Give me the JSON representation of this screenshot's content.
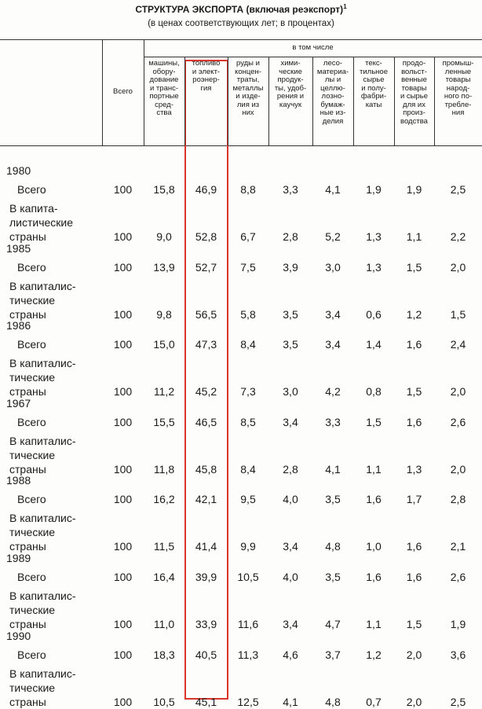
{
  "title": "СТРУКТУРА ЭКСПОРТА (включая реэкспорт)",
  "title_note": "1",
  "subtitle": "(в ценах соответствующих лет; в процентах)",
  "table": {
    "header": {
      "total": "Всего",
      "group": "в том числе",
      "columns": [
        "машины,\nобору-\nдование\nи транс-\nпортные\nсред-\nства",
        "топливо\nи элект-\nроэнер-\nгия",
        "руды и\nконцен-\nтраты,\nметаллы\nи изде-\nлия из\nних",
        "хими-\nческие\nпродук-\nты, удоб-\nрения и\nкаучук",
        "лесо-\nматериа-\nлы и\nцеллю-\nлозно-\nбумаж-\nные из-\nделия",
        "текс-\nтильное\nсырье\nи полу-\nфабри-\nкаты",
        "продо-\nвольст-\nвенные\nтовары\nи сырье\nдля их\nпроиз-\nводства",
        "промыш-\nленные\nтовары\nнарод-\nного по-\nтребле-\nния"
      ]
    },
    "groups": [
      {
        "year": "1980",
        "rows": [
          {
            "label": "Всего",
            "values": [
              "100",
              "15,8",
              "46,9",
              "8,8",
              "3,3",
              "4,1",
              "1,9",
              "1,9",
              "2,5"
            ]
          },
          {
            "label": "В капита-\nлистические\nстраны",
            "values": [
              "100",
              "9,0",
              "52,8",
              "6,7",
              "2,8",
              "5,2",
              "1,3",
              "1,1",
              "2,2"
            ]
          }
        ]
      },
      {
        "year": "1985",
        "rows": [
          {
            "label": "Всего",
            "values": [
              "100",
              "13,9",
              "52,7",
              "7,5",
              "3,9",
              "3,0",
              "1,3",
              "1,5",
              "2,0"
            ]
          },
          {
            "label": "В капиталис-\nтические\nстраны",
            "values": [
              "100",
              "9,8",
              "56,5",
              "5,8",
              "3,5",
              "3,4",
              "0,6",
              "1,2",
              "1,5"
            ]
          }
        ]
      },
      {
        "year": "1986",
        "rows": [
          {
            "label": "Всего",
            "values": [
              "100",
              "15,0",
              "47,3",
              "8,4",
              "3,5",
              "3,4",
              "1,4",
              "1,6",
              "2,4"
            ]
          },
          {
            "label": "В капиталис-\nтические\nстраны",
            "values": [
              "100",
              "11,2",
              "45,2",
              "7,3",
              "3,0",
              "4,2",
              "0,8",
              "1,5",
              "2,0"
            ]
          }
        ]
      },
      {
        "year": "1967",
        "rows": [
          {
            "label": "Всего",
            "values": [
              "100",
              "15,5",
              "46,5",
              "8,5",
              "3,4",
              "3,3",
              "1,5",
              "1,6",
              "2,6"
            ]
          },
          {
            "label": "В капиталис-\nтические\nстраны",
            "values": [
              "100",
              "11,8",
              "45,8",
              "8,4",
              "2,8",
              "4,1",
              "1,1",
              "1,3",
              "2,0"
            ]
          }
        ]
      },
      {
        "year": "1988",
        "rows": [
          {
            "label": "Всего",
            "values": [
              "100",
              "16,2",
              "42,1",
              "9,5",
              "4,0",
              "3,5",
              "1,6",
              "1,7",
              "2,8"
            ]
          },
          {
            "label": "В капиталис-\nтические\nстраны",
            "values": [
              "100",
              "11,5",
              "41,4",
              "9,9",
              "3,4",
              "4,8",
              "1,0",
              "1,6",
              "2,1"
            ]
          }
        ]
      },
      {
        "year": "1989",
        "rows": [
          {
            "label": "Всего",
            "values": [
              "100",
              "16,4",
              "39,9",
              "10,5",
              "4,0",
              "3,5",
              "1,6",
              "1,6",
              "2,6"
            ]
          },
          {
            "label": "В капиталис-\nтические\nстраны",
            "values": [
              "100",
              "11,0",
              "33,9",
              "11,6",
              "3,4",
              "4,7",
              "1,1",
              "1,5",
              "1,9"
            ]
          }
        ]
      },
      {
        "year": "1990",
        "rows": [
          {
            "label": "Всего",
            "values": [
              "100",
              "18,3",
              "40,5",
              "11,3",
              "4,6",
              "3,7",
              "1,2",
              "2,0",
              "3,6"
            ]
          },
          {
            "label": "В капиталис-\nтические\nстраны",
            "values": [
              "100",
              "10,5",
              "45,1",
              "12,5",
              "4,1",
              "4,8",
              "0,7",
              "2,0",
              "2,5"
            ]
          }
        ]
      }
    ]
  }
}
